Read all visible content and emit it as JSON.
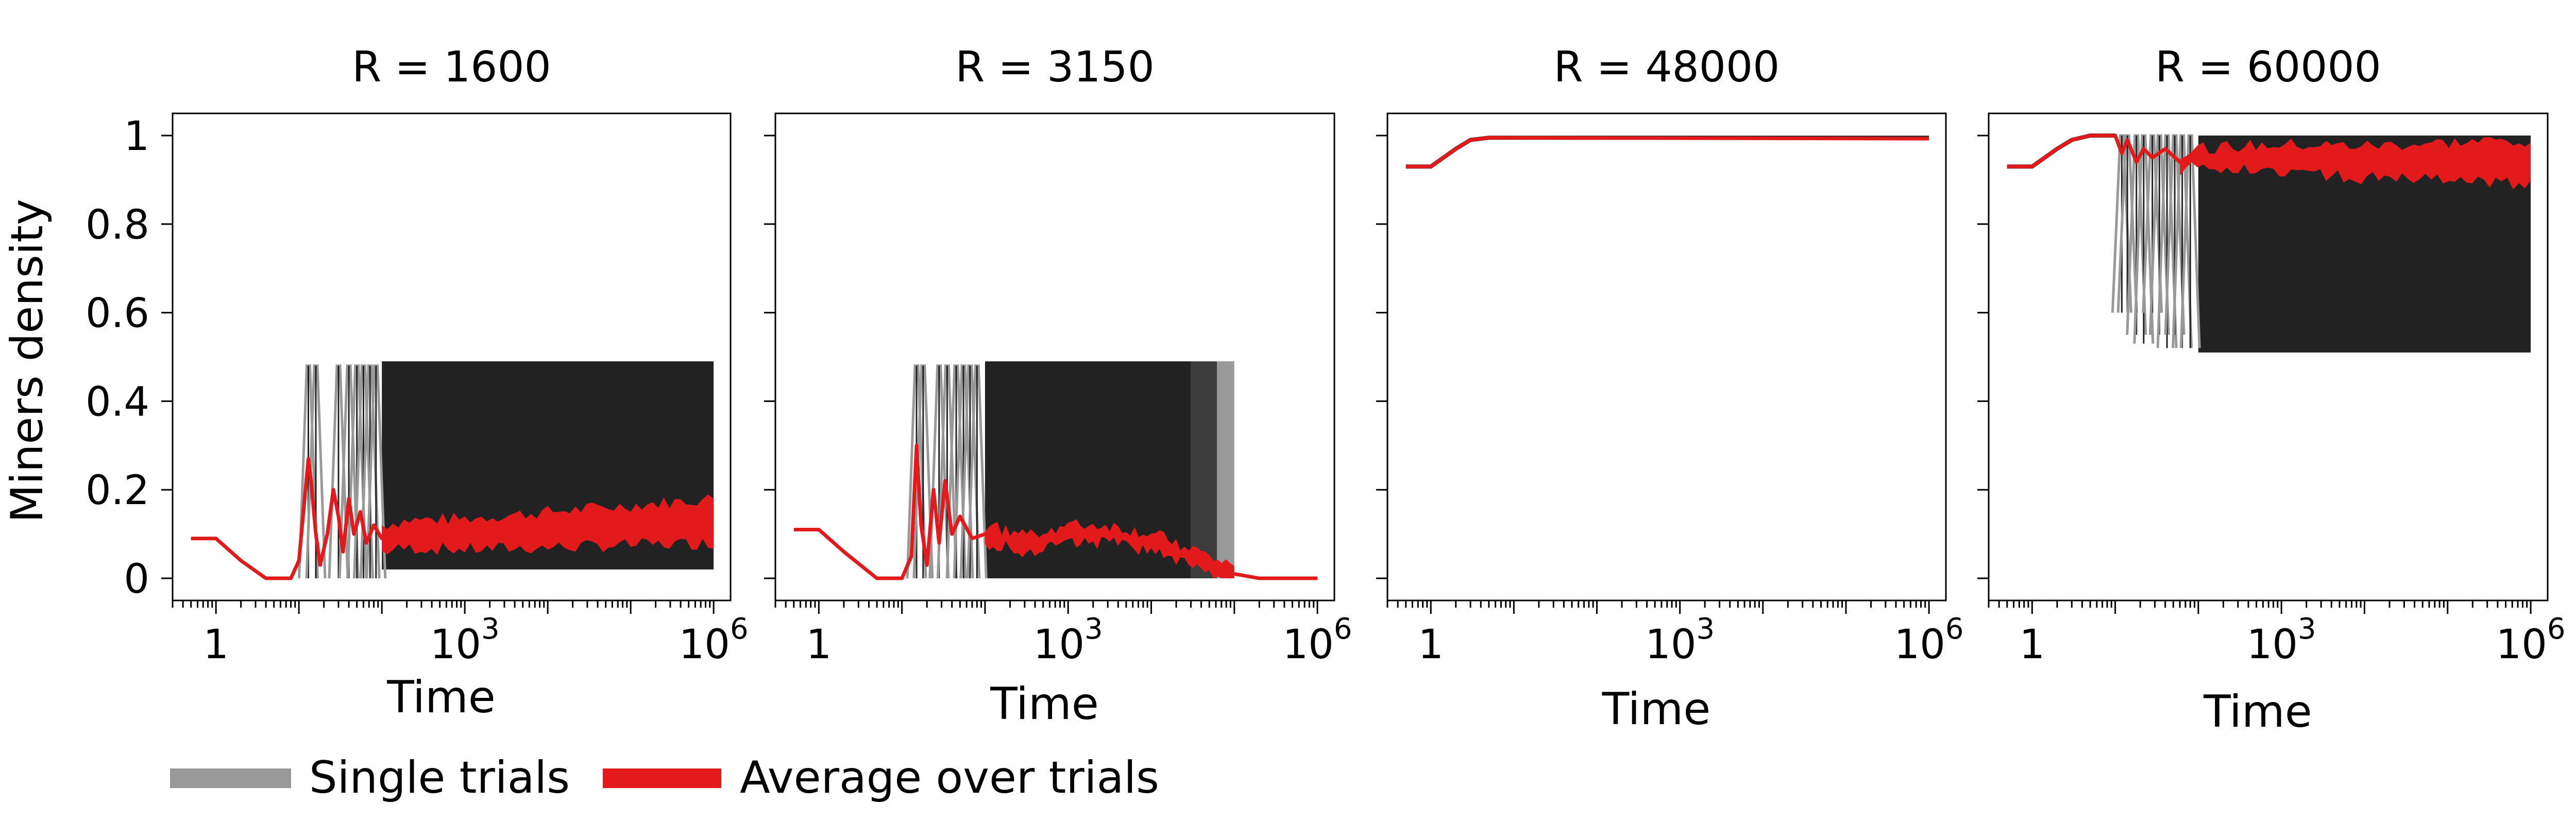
{
  "figure": {
    "ylabel": "Miners density",
    "xlabel": "Time"
  },
  "legend": {
    "items": [
      {
        "label": "Single trials",
        "color": "#999999"
      },
      {
        "label": "Average over trials",
        "color": "#e31a1c"
      }
    ]
  },
  "colors": {
    "single_trials": "#999999",
    "single_trials_dense": "#222222",
    "average": "#e31a1c",
    "axis": "#000000"
  },
  "chart_data": [
    {
      "type": "line",
      "title": "R = 1600",
      "xscale": "log",
      "xlim": [
        0.3,
        1600000
      ],
      "ylim": [
        -0.05,
        1.05
      ],
      "xticks": [
        {
          "value": 1,
          "label": "1",
          "exp": ""
        },
        {
          "value": 1000,
          "label": "10",
          "exp": "3"
        },
        {
          "value": 1000000,
          "label": "10",
          "exp": "6"
        }
      ],
      "yticks": [
        {
          "value": 0,
          "label": "0"
        },
        {
          "value": 0.2,
          "label": "0.2"
        },
        {
          "value": 0.4,
          "label": "0.4"
        },
        {
          "value": 0.6,
          "label": "0.6"
        },
        {
          "value": 0.8,
          "label": "0.8"
        },
        {
          "value": 1,
          "label": "1"
        }
      ],
      "single_trials_band": {
        "x_start": 100,
        "x_end": 1000000,
        "low": 0.02,
        "high": 0.49
      },
      "single_trials_spikes": [
        {
          "x": 13,
          "low": 0.0,
          "high": 0.48
        },
        {
          "x": 16,
          "low": 0.0,
          "high": 0.48
        },
        {
          "x": 30,
          "low": 0.0,
          "high": 0.48
        },
        {
          "x": 40,
          "low": 0.0,
          "high": 0.48
        },
        {
          "x": 50,
          "low": 0.0,
          "high": 0.48
        },
        {
          "x": 60,
          "low": 0.0,
          "high": 0.48
        },
        {
          "x": 72,
          "low": 0.0,
          "high": 0.48
        },
        {
          "x": 85,
          "low": 0.0,
          "high": 0.48
        }
      ],
      "average_series": {
        "name": "Average over trials",
        "x": [
          0.5,
          1,
          2,
          4,
          6,
          8,
          10,
          12,
          13,
          14,
          16,
          18,
          22,
          26,
          30,
          34,
          40,
          46,
          55,
          65,
          80,
          100,
          200,
          1000,
          10000,
          100000,
          1000000
        ],
        "y": [
          0.09,
          0.09,
          0.04,
          0.0,
          0.0,
          0.0,
          0.04,
          0.2,
          0.27,
          0.22,
          0.1,
          0.03,
          0.1,
          0.2,
          0.14,
          0.06,
          0.18,
          0.1,
          0.15,
          0.08,
          0.12,
          0.09,
          0.1,
          0.1,
          0.11,
          0.12,
          0.13
        ]
      },
      "average_band": {
        "x_start": 100,
        "x_end": 1000000,
        "spread_start": 0.03,
        "spread_end": 0.05
      }
    },
    {
      "type": "line",
      "title": "R = 3150",
      "xscale": "log",
      "xlim": [
        0.3,
        1600000
      ],
      "ylim": [
        -0.05,
        1.05
      ],
      "xticks": [
        {
          "value": 1,
          "label": "1",
          "exp": ""
        },
        {
          "value": 1000,
          "label": "10",
          "exp": "3"
        },
        {
          "value": 1000000,
          "label": "10",
          "exp": "6"
        }
      ],
      "yticks": [
        {
          "value": 0,
          "label": "0"
        },
        {
          "value": 0.2,
          "label": "0.2"
        },
        {
          "value": 0.4,
          "label": "0.4"
        },
        {
          "value": 0.6,
          "label": "0.6"
        },
        {
          "value": 0.8,
          "label": "0.8"
        },
        {
          "value": 1,
          "label": "1"
        }
      ],
      "single_trials_band": {
        "x_start": 100,
        "x_end": 30000,
        "low": 0.0,
        "high": 0.49
      },
      "single_trials_gray_band": {
        "x_start": 30000,
        "x_end": 100000,
        "low": 0.0,
        "high": 0.49
      },
      "single_trials_spikes": [
        {
          "x": 15,
          "low": 0.0,
          "high": 0.48
        },
        {
          "x": 18,
          "low": 0.0,
          "high": 0.48
        },
        {
          "x": 28,
          "low": 0.0,
          "high": 0.48
        },
        {
          "x": 35,
          "low": 0.0,
          "high": 0.48
        },
        {
          "x": 45,
          "low": 0.0,
          "high": 0.48
        },
        {
          "x": 55,
          "low": 0.0,
          "high": 0.48
        },
        {
          "x": 66,
          "low": 0.0,
          "high": 0.48
        },
        {
          "x": 80,
          "low": 0.0,
          "high": 0.48
        }
      ],
      "average_series": {
        "name": "Average over trials",
        "x": [
          0.5,
          1,
          2,
          5,
          10,
          13,
          15,
          17,
          20,
          24,
          28,
          33,
          40,
          50,
          70,
          100,
          300,
          1000,
          3000,
          10000,
          30000,
          60000,
          100000,
          200000,
          1000000
        ],
        "y": [
          0.11,
          0.11,
          0.06,
          0.0,
          0.0,
          0.05,
          0.3,
          0.12,
          0.03,
          0.2,
          0.08,
          0.22,
          0.1,
          0.14,
          0.09,
          0.1,
          0.08,
          0.1,
          0.1,
          0.08,
          0.05,
          0.02,
          0.01,
          0.0,
          0.0
        ]
      },
      "average_band": {
        "x_start": 100,
        "x_end": 100000,
        "spread_start": 0.02,
        "spread_end": 0.02
      }
    },
    {
      "type": "line",
      "title": "R = 48000",
      "xscale": "log",
      "xlim": [
        0.3,
        1600000
      ],
      "ylim": [
        -0.05,
        1.05
      ],
      "xticks": [
        {
          "value": 1,
          "label": "1",
          "exp": ""
        },
        {
          "value": 1000,
          "label": "10",
          "exp": "3"
        },
        {
          "value": 1000000,
          "label": "10",
          "exp": "6"
        }
      ],
      "yticks": [
        {
          "value": 0,
          "label": "0"
        },
        {
          "value": 0.2,
          "label": "0.2"
        },
        {
          "value": 0.4,
          "label": "0.4"
        },
        {
          "value": 0.6,
          "label": "0.6"
        },
        {
          "value": 0.8,
          "label": "0.8"
        },
        {
          "value": 1,
          "label": "1"
        }
      ],
      "single_trials_series": {
        "x": [
          0.5,
          1,
          2,
          3,
          5,
          1000000
        ],
        "y": [
          0.93,
          0.93,
          0.97,
          0.99,
          0.995,
          0.995
        ]
      },
      "average_series": {
        "name": "Average over trials",
        "x": [
          0.5,
          1,
          2,
          3,
          5,
          1000000
        ],
        "y": [
          0.93,
          0.93,
          0.97,
          0.99,
          0.995,
          0.993
        ]
      }
    },
    {
      "type": "line",
      "title": "R = 60000",
      "xscale": "log",
      "xlim": [
        0.3,
        1600000
      ],
      "ylim": [
        -0.05,
        1.05
      ],
      "xticks": [
        {
          "value": 1,
          "label": "1",
          "exp": ""
        },
        {
          "value": 1000,
          "label": "10",
          "exp": "3"
        },
        {
          "value": 1000000,
          "label": "10",
          "exp": "6"
        }
      ],
      "yticks": [
        {
          "value": 0,
          "label": "0"
        },
        {
          "value": 0.2,
          "label": "0.2"
        },
        {
          "value": 0.4,
          "label": "0.4"
        },
        {
          "value": 0.6,
          "label": "0.6"
        },
        {
          "value": 0.8,
          "label": "0.8"
        },
        {
          "value": 1,
          "label": "1"
        }
      ],
      "single_trials_series": {
        "x": [
          0.5,
          1,
          2,
          3,
          5,
          10
        ],
        "y": [
          0.93,
          0.93,
          0.97,
          0.99,
          1.0,
          1.0
        ]
      },
      "single_trials_band": {
        "x_start": 100,
        "x_end": 1000000,
        "low": 0.51,
        "high": 1.0
      },
      "single_trials_spikes": [
        {
          "x": 12,
          "low": 0.6,
          "high": 1.0
        },
        {
          "x": 14,
          "low": 0.6,
          "high": 1.0
        },
        {
          "x": 18,
          "low": 0.55,
          "high": 1.0
        },
        {
          "x": 22,
          "low": 0.53,
          "high": 1.0
        },
        {
          "x": 28,
          "low": 0.6,
          "high": 1.0
        },
        {
          "x": 34,
          "low": 0.55,
          "high": 1.0
        },
        {
          "x": 42,
          "low": 0.52,
          "high": 1.0
        },
        {
          "x": 52,
          "low": 0.55,
          "high": 1.0
        },
        {
          "x": 64,
          "low": 0.52,
          "high": 1.0
        },
        {
          "x": 80,
          "low": 0.52,
          "high": 1.0
        }
      ],
      "average_series": {
        "name": "Average over trials",
        "x": [
          0.5,
          1,
          2,
          3,
          5,
          10,
          12,
          14,
          18,
          22,
          28,
          40,
          60,
          100,
          1000,
          10000,
          100000,
          1000000
        ],
        "y": [
          0.93,
          0.93,
          0.97,
          0.99,
          1.0,
          1.0,
          0.96,
          0.99,
          0.94,
          0.97,
          0.95,
          0.97,
          0.94,
          0.95,
          0.95,
          0.94,
          0.94,
          0.94
        ]
      },
      "average_band": {
        "x_start": 60,
        "x_end": 1000000,
        "spread_start": 0.02,
        "spread_end": 0.05
      }
    }
  ]
}
